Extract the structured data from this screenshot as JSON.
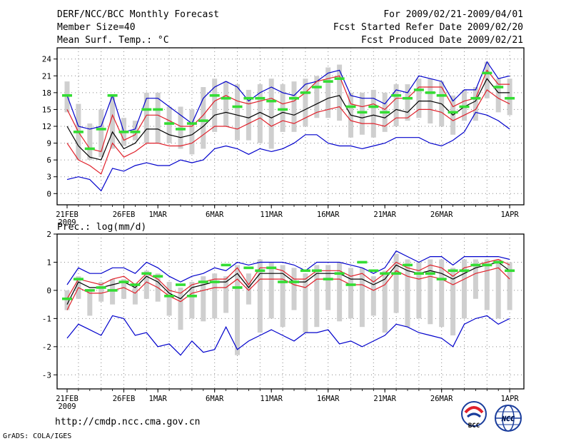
{
  "header": {
    "title": "DERF/NCC/BCC Monthly Forecast",
    "member_size": "Member Size=40",
    "variable1": "Mean Surf. Temp.: °C",
    "period": "For 2009/02/21-2009/04/01",
    "fcst_started": "Fcst Started Refer Date 2009/02/20",
    "fcst_produced": "Fcst Produced Date 2009/02/21"
  },
  "footer": {
    "url": "http://cmdp.ncc.cma.gov.cn",
    "credit": "GrADS: COLA/IGES",
    "logo_bcc": "BCC",
    "logo_ncc": "NCC"
  },
  "colors": {
    "max": "#0000cc",
    "min": "#0000cc",
    "upper": "#e0202a",
    "lower": "#e0202a",
    "median": "#000000",
    "bar": "#cfcfcf",
    "marker": "#33dd33",
    "grid": "#888888"
  },
  "chart_data": [
    {
      "type": "line",
      "title": "Mean Surf. Temp.: °C",
      "xlabel": "",
      "ylabel": "°C",
      "ylim": [
        -2,
        26
      ],
      "yticks": [
        0,
        3,
        6,
        9,
        12,
        15,
        18,
        21,
        24
      ],
      "x_days": 40,
      "xticks": [
        {
          "day": 0,
          "label": "21FEB",
          "sub": "2009"
        },
        {
          "day": 5,
          "label": "26FEB",
          "sub": ""
        },
        {
          "day": 8,
          "label": "1MAR",
          "sub": ""
        },
        {
          "day": 13,
          "label": "6MAR",
          "sub": ""
        },
        {
          "day": 18,
          "label": "11MAR",
          "sub": ""
        },
        {
          "day": 23,
          "label": "16MAR",
          "sub": ""
        },
        {
          "day": 28,
          "label": "21MAR",
          "sub": ""
        },
        {
          "day": 33,
          "label": "26MAR",
          "sub": ""
        },
        {
          "day": 39,
          "label": "1APR",
          "sub": ""
        }
      ],
      "max": [
        17.5,
        12.0,
        11.5,
        12.0,
        17.5,
        11.0,
        11.5,
        17.0,
        17.0,
        15.5,
        14.0,
        12.5,
        17.0,
        19.0,
        20.0,
        19.0,
        16.5,
        18.0,
        19.0,
        18.0,
        17.5,
        19.5,
        20.0,
        21.5,
        22.0,
        17.5,
        17.0,
        17.0,
        16.0,
        18.5,
        18.0,
        21.0,
        20.5,
        20.0,
        16.5,
        18.5,
        18.5,
        23.5,
        20.5,
        21.0
      ],
      "upper": [
        15.0,
        11.0,
        8.0,
        7.5,
        14.0,
        9.5,
        10.5,
        14.0,
        14.0,
        13.0,
        12.0,
        12.0,
        14.0,
        16.5,
        17.5,
        16.5,
        16.0,
        16.5,
        17.0,
        16.0,
        16.5,
        18.0,
        20.0,
        20.5,
        21.0,
        16.0,
        15.5,
        16.0,
        15.0,
        17.0,
        17.0,
        19.0,
        19.0,
        19.0,
        15.5,
        16.5,
        17.0,
        22.0,
        19.5,
        19.5
      ],
      "median": [
        12.0,
        8.5,
        6.5,
        6.0,
        11.0,
        8.0,
        9.0,
        11.5,
        11.5,
        10.5,
        10.0,
        10.5,
        12.0,
        14.0,
        14.5,
        14.0,
        13.5,
        14.5,
        13.5,
        14.5,
        14.0,
        15.0,
        16.0,
        17.0,
        17.5,
        14.0,
        13.5,
        14.0,
        13.5,
        15.0,
        14.5,
        16.5,
        16.5,
        16.0,
        14.0,
        15.5,
        16.5,
        20.5,
        18.0,
        18.0
      ],
      "lower": [
        9.0,
        6.0,
        5.0,
        3.5,
        9.0,
        6.5,
        7.5,
        9.0,
        9.0,
        8.5,
        8.5,
        9.0,
        10.5,
        12.0,
        12.0,
        11.5,
        12.5,
        13.5,
        12.0,
        13.0,
        12.5,
        13.5,
        14.5,
        15.0,
        15.5,
        13.0,
        12.5,
        12.5,
        12.0,
        13.5,
        13.5,
        15.0,
        15.0,
        14.5,
        13.0,
        14.0,
        15.0,
        18.5,
        17.0,
        16.0
      ],
      "min": [
        2.5,
        3.0,
        2.5,
        0.5,
        4.5,
        4.0,
        5.0,
        5.5,
        5.0,
        5.0,
        6.0,
        5.5,
        6.0,
        8.0,
        8.5,
        8.0,
        7.0,
        8.0,
        7.5,
        8.0,
        9.0,
        10.5,
        10.5,
        9.0,
        8.5,
        8.5,
        8.0,
        8.5,
        9.0,
        10.0,
        10.0,
        10.0,
        9.0,
        8.5,
        9.5,
        11.0,
        14.5,
        14.0,
        13.0,
        11.5
      ],
      "bar_hi": [
        20.0,
        16.0,
        12.5,
        15.0,
        17.5,
        13.5,
        13.0,
        18.0,
        18.0,
        15.5,
        15.5,
        15.0,
        19.0,
        20.5,
        20.0,
        19.5,
        18.5,
        19.5,
        20.5,
        19.5,
        20.0,
        20.5,
        21.0,
        22.5,
        23.0,
        18.0,
        18.0,
        18.5,
        18.0,
        19.5,
        19.5,
        20.5,
        20.5,
        20.0,
        17.5,
        18.5,
        19.0,
        23.5,
        20.5,
        20.5
      ],
      "bar_lo": [
        14.5,
        6.0,
        6.0,
        6.5,
        8.0,
        8.5,
        9.5,
        9.0,
        9.0,
        9.0,
        8.0,
        7.0,
        8.0,
        11.0,
        12.0,
        9.5,
        9.5,
        9.0,
        8.0,
        11.0,
        11.0,
        12.0,
        13.5,
        13.5,
        13.0,
        10.0,
        10.5,
        10.0,
        11.0,
        12.0,
        13.0,
        13.5,
        12.5,
        12.0,
        10.5,
        13.0,
        13.0,
        17.0,
        14.5,
        14.0
      ],
      "marker": [
        17.5,
        11.0,
        8.0,
        11.5,
        17.5,
        11.0,
        11.0,
        15.0,
        15.0,
        12.5,
        11.5,
        12.5,
        13.0,
        17.5,
        17.0,
        15.5,
        17.0,
        17.0,
        16.5,
        15.0,
        17.0,
        18.0,
        19.0,
        20.0,
        20.5,
        15.5,
        14.5,
        15.5,
        14.5,
        17.5,
        17.0,
        18.5,
        18.0,
        17.5,
        14.5,
        15.5,
        17.0,
        21.5,
        19.0,
        17.0
      ]
    },
    {
      "type": "line",
      "title": "Prec.: log(mm/d)",
      "xlabel": "",
      "ylabel": "log(mm/d)",
      "ylim": [
        -3.5,
        2.0
      ],
      "yticks": [
        -3,
        -2,
        -1,
        0,
        1,
        2
      ],
      "x_days": 40,
      "xticks": [
        {
          "day": 0,
          "label": "21FEB",
          "sub": "2009"
        },
        {
          "day": 5,
          "label": "26FEB",
          "sub": ""
        },
        {
          "day": 8,
          "label": "1MAR",
          "sub": ""
        },
        {
          "day": 13,
          "label": "6MAR",
          "sub": ""
        },
        {
          "day": 18,
          "label": "11MAR",
          "sub": ""
        },
        {
          "day": 23,
          "label": "16MAR",
          "sub": ""
        },
        {
          "day": 28,
          "label": "21MAR",
          "sub": ""
        },
        {
          "day": 33,
          "label": "26MAR",
          "sub": ""
        },
        {
          "day": 39,
          "label": "1APR",
          "sub": ""
        }
      ],
      "max": [
        0.2,
        0.8,
        0.6,
        0.6,
        0.8,
        0.8,
        0.6,
        1.0,
        0.8,
        0.5,
        0.3,
        0.5,
        0.6,
        0.8,
        0.7,
        1.0,
        0.9,
        1.0,
        1.0,
        1.0,
        0.9,
        0.7,
        1.0,
        1.0,
        1.0,
        0.9,
        0.8,
        0.6,
        0.8,
        1.4,
        1.2,
        1.0,
        1.2,
        1.2,
        0.9,
        1.2,
        1.2,
        1.2,
        1.2,
        1.1
      ],
      "upper": [
        -0.3,
        0.4,
        0.3,
        0.2,
        0.4,
        0.5,
        0.2,
        0.6,
        0.4,
        0.0,
        -0.1,
        0.2,
        0.3,
        0.4,
        0.4,
        0.8,
        0.2,
        0.8,
        0.8,
        0.7,
        0.4,
        0.4,
        0.7,
        0.7,
        0.7,
        0.5,
        0.6,
        0.3,
        0.6,
        1.0,
        0.8,
        0.7,
        0.9,
        0.8,
        0.5,
        0.8,
        0.9,
        1.0,
        1.1,
        0.9
      ],
      "median": [
        -0.5,
        0.3,
        0.1,
        0.1,
        0.2,
        0.3,
        0.1,
        0.5,
        0.3,
        -0.1,
        -0.3,
        0.1,
        0.2,
        0.3,
        0.3,
        0.6,
        0.1,
        0.6,
        0.6,
        0.6,
        0.3,
        0.3,
        0.6,
        0.6,
        0.6,
        0.4,
        0.4,
        0.2,
        0.4,
        0.9,
        0.7,
        0.6,
        0.7,
        0.6,
        0.4,
        0.6,
        0.8,
        0.9,
        1.0,
        0.7
      ],
      "lower": [
        -0.7,
        0.1,
        -0.1,
        -0.1,
        0.0,
        0.1,
        -0.1,
        0.3,
        0.1,
        -0.2,
        -0.4,
        -0.1,
        0.0,
        0.1,
        0.1,
        0.4,
        0.0,
        0.4,
        0.4,
        0.4,
        0.2,
        0.1,
        0.4,
        0.4,
        0.4,
        0.2,
        0.2,
        0.0,
        0.2,
        0.7,
        0.5,
        0.4,
        0.5,
        0.4,
        0.2,
        0.4,
        0.6,
        0.7,
        0.8,
        0.4
      ],
      "min": [
        -1.7,
        -1.2,
        -1.4,
        -1.6,
        -0.9,
        -1.0,
        -1.6,
        -1.5,
        -2.0,
        -1.9,
        -2.3,
        -1.8,
        -2.2,
        -2.1,
        -1.3,
        -2.1,
        -1.8,
        -1.6,
        -1.4,
        -1.6,
        -1.8,
        -1.5,
        -1.5,
        -1.4,
        -1.9,
        -1.8,
        -2.0,
        -1.8,
        -1.6,
        -1.2,
        -1.3,
        -1.5,
        -1.6,
        -1.7,
        -2.0,
        -1.2,
        -1.0,
        -0.9,
        -1.2,
        -1.0
      ],
      "bar_hi": [
        0.0,
        0.5,
        0.0,
        0.3,
        0.4,
        0.4,
        0.2,
        0.7,
        0.6,
        0.3,
        0.1,
        0.3,
        0.5,
        0.6,
        0.5,
        0.9,
        0.6,
        1.1,
        1.0,
        0.9,
        0.8,
        0.6,
        0.9,
        0.9,
        1.0,
        0.8,
        0.8,
        0.5,
        0.7,
        1.3,
        1.1,
        1.0,
        1.1,
        1.1,
        0.8,
        1.1,
        1.1,
        1.1,
        1.1,
        1.0
      ],
      "bar_lo": [
        -0.7,
        -0.3,
        -0.9,
        -0.4,
        -0.5,
        -0.3,
        -0.5,
        -0.3,
        -0.4,
        -0.9,
        -1.4,
        -1.0,
        -1.1,
        -1.0,
        -0.8,
        -2.3,
        -0.5,
        -1.5,
        -1.0,
        -1.3,
        -0.7,
        -1.5,
        -1.3,
        -0.7,
        -1.1,
        -1.0,
        -1.3,
        -0.9,
        -1.5,
        -0.8,
        -1.3,
        -1.0,
        -1.2,
        -1.3,
        -1.6,
        -1.0,
        -0.3,
        -0.7,
        -1.0,
        -0.7
      ],
      "marker": [
        -0.3,
        0.4,
        0.0,
        0.1,
        0.0,
        0.3,
        0.2,
        0.6,
        0.5,
        -0.2,
        0.2,
        -0.2,
        0.3,
        0.3,
        0.9,
        0.1,
        0.8,
        0.7,
        0.8,
        0.3,
        0.3,
        0.7,
        0.7,
        0.4,
        0.6,
        0.2,
        1.0,
        0.7,
        0.6,
        0.6,
        0.9,
        0.6,
        0.6,
        0.4,
        0.7,
        0.7,
        0.9,
        0.9,
        1.0,
        0.7
      ]
    }
  ]
}
